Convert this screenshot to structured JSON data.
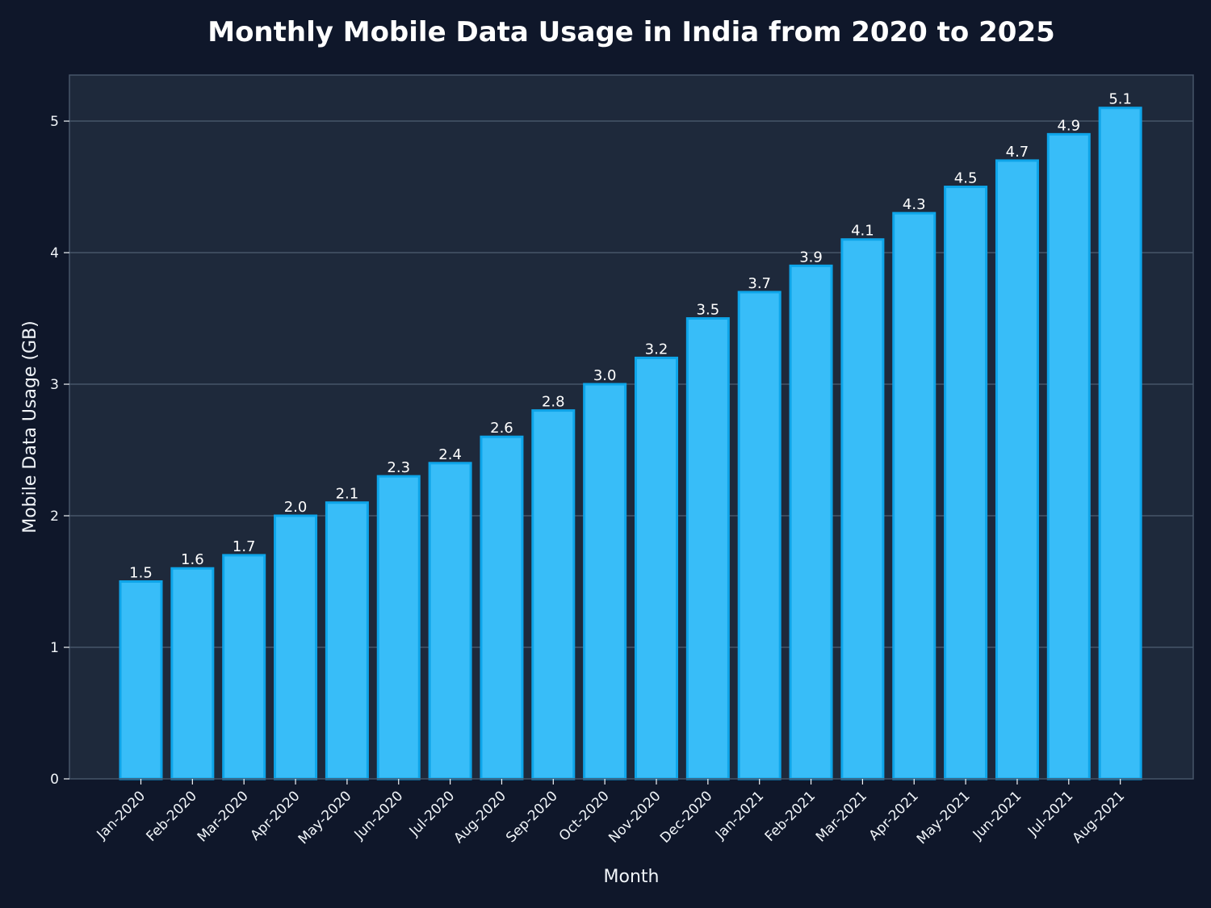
{
  "chart_data": {
    "type": "bar",
    "title": "Monthly Mobile Data Usage in India from 2020 to 2025",
    "xlabel": "Month",
    "ylabel": "Mobile Data Usage (GB)",
    "categories": [
      "Jan-2020",
      "Feb-2020",
      "Mar-2020",
      "Apr-2020",
      "May-2020",
      "Jun-2020",
      "Jul-2020",
      "Aug-2020",
      "Sep-2020",
      "Oct-2020",
      "Nov-2020",
      "Dec-2020",
      "Jan-2021",
      "Feb-2021",
      "Mar-2021",
      "Apr-2021",
      "May-2021",
      "Jun-2021",
      "Jul-2021",
      "Aug-2021"
    ],
    "values": [
      1.5,
      1.6,
      1.7,
      2.0,
      2.1,
      2.3,
      2.4,
      2.6,
      2.8,
      3.0,
      3.2,
      3.5,
      3.7,
      3.9,
      4.1,
      4.3,
      4.5,
      4.7,
      4.9,
      5.1
    ],
    "value_labels": [
      "1.5",
      "1.6",
      "1.7",
      "2.0",
      "2.1",
      "2.3",
      "2.4",
      "2.6",
      "2.8",
      "3.0",
      "3.2",
      "3.5",
      "3.7",
      "3.9",
      "4.1",
      "4.3",
      "4.5",
      "4.7",
      "4.9",
      "5.1"
    ],
    "yticks": [
      0,
      1,
      2,
      3,
      4,
      5
    ],
    "ylim": [
      0,
      5.35
    ],
    "grid": true,
    "legend": "none",
    "colors": {
      "page_background": "#0f172a",
      "plot_background": "#1e293b",
      "bar_fill": "#38bdf8",
      "bar_edge": "#0ea5e9",
      "grid": "#475569",
      "text": "#f1f5f9"
    }
  }
}
